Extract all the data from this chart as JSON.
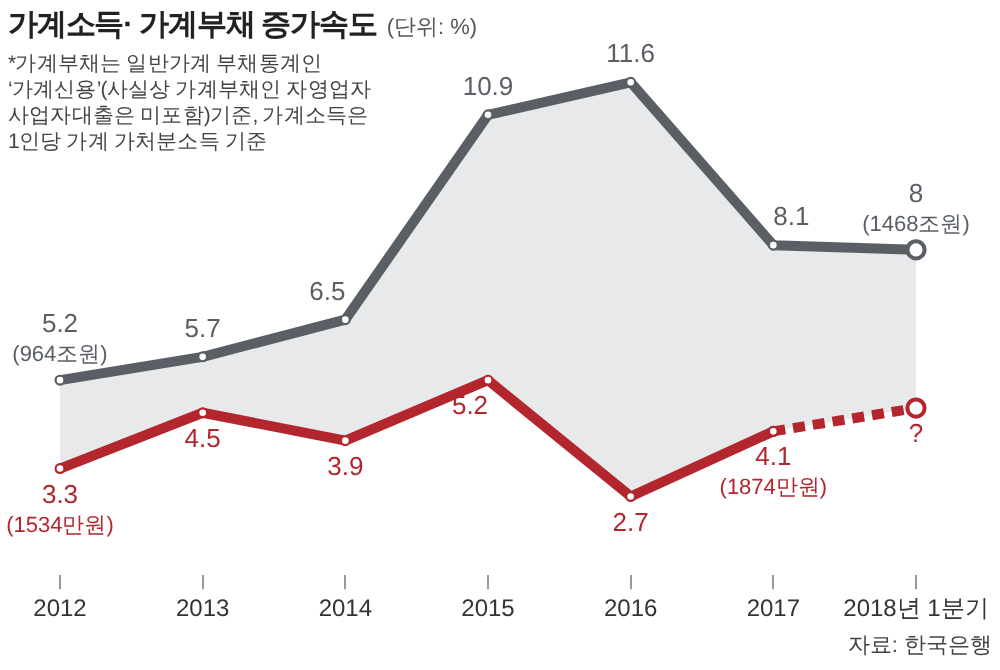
{
  "chart_data": {
    "type": "line",
    "title": "가계소득· 가계부채 증가속도",
    "subtitle": "(단위: %)",
    "categories": [
      "2012",
      "2013",
      "2014",
      "2015",
      "2016",
      "2017",
      "2018년 1분기"
    ],
    "series": [
      {
        "color": "#5a5f66",
        "values": [
          5.2,
          5.7,
          6.5,
          10.9,
          11.6,
          8.1,
          8
        ],
        "value_labels": [
          "5.2",
          "5.7",
          "6.5",
          "10.9",
          "11.6",
          "8.1",
          "8"
        ],
        "lower": [
          3.3,
          4.5,
          3.9,
          5.2,
          2.7,
          4.1,
          4.6
        ],
        "upper": [
          5.2,
          5.7,
          6.5,
          10.9,
          11.6,
          8.1,
          8
        ]
      },
      {
        "color": "#b3262d",
        "values": [
          3.3,
          4.5,
          3.9,
          5.2,
          2.7,
          4.1,
          null
        ],
        "value_labels": [
          "3.3",
          "4.5",
          "3.9",
          "5.2",
          "2.7",
          "4.1",
          null
        ]
      },
      {
        "color": "#b3262d",
        "values": [
          null,
          null,
          null,
          null,
          null,
          4.1,
          4.6
        ],
        "value_labels": [
          null,
          null,
          null,
          null,
          null,
          null,
          "?"
        ],
        "line_style": "dotted"
      }
    ],
    "tick_labels": "x",
    "marker": "circle",
    "line_style": "solid",
    "annotations": [
      "*가계부채는 일반가계 부채통계인 ‘가계신용’(사실상 가계부채인 자영업자 사업자대출은 미포함)기준, 가계소득은 1인당 가계 가처분소득 기준",
      "자료: 한국은행",
      {
        "text": "(964조원)",
        "x": "2012",
        "y": 5.2
      },
      {
        "text": "(1468조원)",
        "x": "2018년 1분기",
        "y": 8
      },
      {
        "text": "(1534만원)",
        "x": "2012",
        "y": 3.3
      },
      {
        "text": "(1874만원)",
        "x": "2017",
        "y": 4.1
      }
    ]
  }
}
